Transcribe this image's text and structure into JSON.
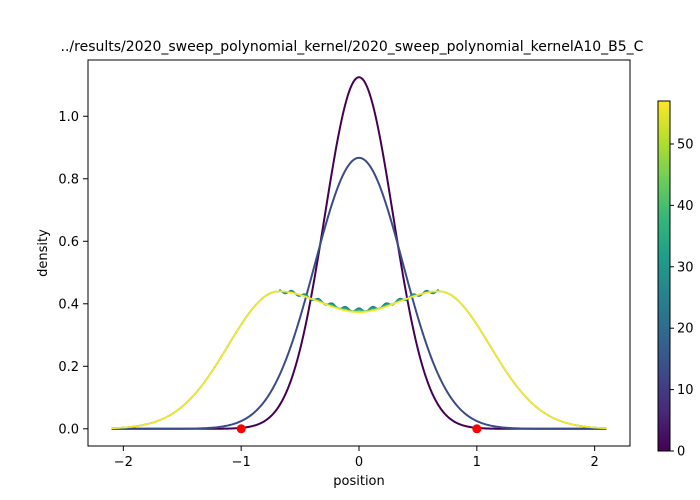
{
  "chart_data": {
    "type": "line",
    "title": "../results/2020_sweep_polynomial_kernel/2020_sweep_polynomial_kernelA10_B5_C",
    "xlabel": "position",
    "ylabel": "density",
    "xlim": [
      -2.3,
      2.3
    ],
    "ylim": [
      -0.055,
      1.18
    ],
    "x_ticks": [
      "−2",
      "−1",
      "0",
      "1",
      "2"
    ],
    "x_tick_values": [
      -2,
      -1,
      0,
      1,
      2
    ],
    "y_ticks": [
      "0.0",
      "0.2",
      "0.4",
      "0.6",
      "0.8",
      "1.0"
    ],
    "y_tick_values": [
      0.0,
      0.2,
      0.4,
      0.6,
      0.8,
      1.0
    ],
    "x_range": [
      -2.1,
      2.1
    ],
    "series": [
      {
        "step": 0,
        "color": "#440154",
        "model": "gaussian",
        "amplitude": 1.125,
        "sigma": 0.29
      },
      {
        "step": 5,
        "color": "#3b4b8a",
        "model": "gaussian",
        "amplitude": 0.867,
        "sigma": 0.375
      },
      {
        "step": 15,
        "color": "#2a788e",
        "model": "bimodal",
        "peak_x": 0.68,
        "peak_y": 0.44,
        "center_y": 0.38,
        "ripple": 0.006
      },
      {
        "step": 30,
        "color": "#22a884",
        "model": "bimodal",
        "peak_x": 0.68,
        "peak_y": 0.44,
        "center_y": 0.378,
        "ripple": 0.003
      },
      {
        "step": 45,
        "color": "#7ad151",
        "model": "bimodal",
        "peak_x": 0.68,
        "peak_y": 0.44,
        "center_y": 0.375,
        "ripple": 0.0
      },
      {
        "step": 57,
        "color": "#fde725",
        "model": "bimodal",
        "peak_x": 0.68,
        "peak_y": 0.44,
        "center_y": 0.373,
        "ripple": 0.0
      }
    ],
    "markers": {
      "color": "#ff0000",
      "points": [
        {
          "x": -1,
          "y": 0.0
        },
        {
          "x": 1,
          "y": 0.0
        }
      ]
    },
    "colorbar": {
      "colormap": "viridis",
      "min": 0,
      "max": 57,
      "ticks": [
        "0",
        "10",
        "20",
        "30",
        "40",
        "50"
      ],
      "tick_values": [
        0,
        10,
        20,
        30,
        40,
        50
      ],
      "stops": [
        "#440154",
        "#482878",
        "#3e4989",
        "#31688e",
        "#26828e",
        "#1f9e89",
        "#35b779",
        "#6ece58",
        "#b5de2b",
        "#fde725"
      ]
    },
    "grid": false,
    "legend": "none"
  }
}
